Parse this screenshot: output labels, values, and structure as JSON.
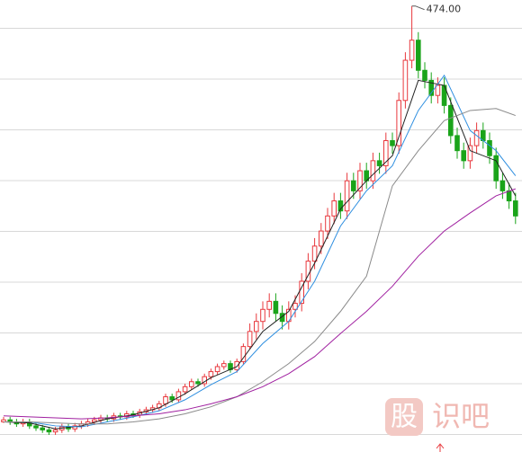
{
  "chart_data": {
    "type": "candlestick",
    "ylim": [
      30,
      480
    ],
    "up_color": "#e8383d",
    "down_color": "#1aa41a",
    "open": [
      60,
      62,
      60,
      58,
      60,
      56,
      54,
      52,
      50,
      52,
      55,
      53,
      56,
      58,
      60,
      62,
      64,
      63,
      66,
      65,
      68,
      67,
      70,
      72,
      74,
      78,
      85,
      82,
      90,
      95,
      100,
      98,
      105,
      110,
      115,
      118,
      112,
      120,
      135,
      150,
      160,
      172,
      180,
      168,
      160,
      172,
      178,
      200,
      220,
      235,
      250,
      265,
      280,
      270,
      300,
      290,
      310,
      300,
      320,
      315,
      340,
      335,
      380,
      420,
      440,
      410,
      400,
      385,
      395,
      375,
      345,
      330,
      320,
      335,
      350,
      340,
      325,
      300,
      290,
      280
    ],
    "high": [
      65,
      65,
      63,
      63,
      63,
      59,
      57,
      55,
      55,
      58,
      58,
      59,
      61,
      63,
      65,
      67,
      67,
      69,
      69,
      71,
      71,
      73,
      75,
      77,
      81,
      88,
      88,
      93,
      98,
      103,
      103,
      108,
      113,
      118,
      121,
      121,
      123,
      138,
      158,
      168,
      180,
      188,
      188,
      176,
      180,
      186,
      208,
      228,
      243,
      258,
      273,
      288,
      288,
      308,
      308,
      318,
      318,
      328,
      328,
      348,
      348,
      388,
      428,
      474,
      448,
      418,
      408,
      403,
      403,
      383,
      353,
      338,
      343,
      358,
      358,
      348,
      333,
      308,
      298,
      288
    ],
    "low": [
      59,
      57,
      55,
      55,
      53,
      51,
      49,
      47,
      47,
      49,
      50,
      50,
      53,
      55,
      57,
      59,
      60,
      60,
      62,
      62,
      64,
      64,
      67,
      69,
      71,
      75,
      79,
      79,
      87,
      92,
      95,
      95,
      102,
      107,
      112,
      109,
      109,
      117,
      132,
      142,
      152,
      164,
      160,
      152,
      152,
      164,
      170,
      192,
      212,
      227,
      242,
      257,
      262,
      262,
      282,
      282,
      292,
      292,
      307,
      307,
      327,
      327,
      372,
      412,
      402,
      392,
      377,
      377,
      367,
      337,
      322,
      312,
      312,
      327,
      332,
      317,
      292,
      282,
      272,
      257
    ],
    "close": [
      62,
      60,
      58,
      60,
      56,
      54,
      52,
      50,
      52,
      55,
      53,
      56,
      58,
      60,
      62,
      64,
      63,
      66,
      65,
      68,
      67,
      70,
      72,
      74,
      78,
      85,
      82,
      90,
      95,
      100,
      98,
      105,
      110,
      115,
      118,
      112,
      120,
      135,
      150,
      160,
      172,
      180,
      168,
      160,
      172,
      178,
      200,
      220,
      235,
      250,
      265,
      280,
      270,
      300,
      290,
      310,
      300,
      320,
      315,
      340,
      335,
      380,
      420,
      440,
      410,
      400,
      385,
      395,
      375,
      345,
      330,
      320,
      335,
      350,
      340,
      325,
      300,
      290,
      280,
      265
    ],
    "lines": [
      {
        "color": "#222222",
        "x": [
          0,
          4,
          8,
          12,
          16,
          20,
          24,
          28,
          32,
          36,
          40,
          44,
          48,
          52,
          56,
          60,
          64,
          68,
          72,
          76,
          79
        ],
        "values": [
          60,
          59,
          53,
          56,
          63,
          67,
          74,
          88,
          104,
          115,
          150,
          170,
          218,
          272,
          300,
          325,
          400,
          395,
          330,
          320,
          285
        ]
      },
      {
        "color": "#2f8fe0",
        "x": [
          0,
          4,
          8,
          12,
          16,
          20,
          24,
          28,
          32,
          36,
          40,
          44,
          48,
          52,
          56,
          60,
          64,
          68,
          72,
          76,
          79
        ],
        "values": [
          60,
          60,
          56,
          55,
          60,
          65,
          71,
          82,
          97,
          110,
          138,
          160,
          200,
          255,
          290,
          315,
          370,
          405,
          350,
          330,
          305
        ]
      },
      {
        "color": "#8a8a8a",
        "x": [
          0,
          4,
          8,
          12,
          16,
          20,
          24,
          28,
          32,
          36,
          40,
          44,
          48,
          52,
          56,
          60,
          64,
          68,
          72,
          76,
          79
        ],
        "values": [
          60,
          60,
          59,
          58,
          58,
          60,
          63,
          68,
          75,
          85,
          100,
          118,
          140,
          170,
          205,
          295,
          330,
          360,
          370,
          372,
          365
        ]
      },
      {
        "color": "#a020a0",
        "x": [
          0,
          4,
          8,
          12,
          16,
          20,
          24,
          28,
          32,
          36,
          40,
          44,
          48,
          52,
          56,
          60,
          64,
          68,
          72,
          76,
          79
        ],
        "values": [
          66,
          65,
          64,
          63,
          64,
          66,
          68,
          72,
          78,
          85,
          95,
          108,
          125,
          148,
          170,
          195,
          225,
          250,
          268,
          285,
          292
        ]
      }
    ],
    "annotation": {
      "text": "474.00",
      "x": 63,
      "y": 474
    },
    "watermark": [
      "股",
      "识吧"
    ]
  }
}
